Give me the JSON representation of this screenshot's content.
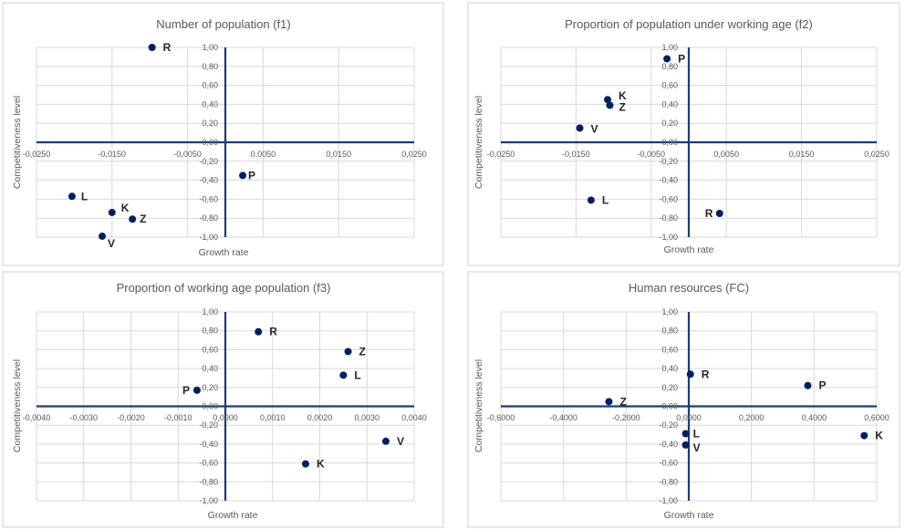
{
  "chart_data": [
    {
      "type": "scatter",
      "title": "Number of population (f1)",
      "xlabel": "Growth rate",
      "ylabel": "Competitiveness level",
      "xlim": [
        -0.025,
        0.025
      ],
      "ylim": [
        -1.0,
        1.0
      ],
      "x_ticks": [
        "-0,0250",
        "-0,0150",
        "-0,0050",
        "0,0050",
        "0,0150",
        "0,0250"
      ],
      "y_ticks": [
        "1,00",
        "0,80",
        "0,60",
        "0,40",
        "0,20",
        "0,00",
        "-0,20",
        "-0,40",
        "-0,60",
        "-0,80",
        "-1,00"
      ],
      "grid": true,
      "points": [
        {
          "label": "R",
          "x": -0.0097,
          "y": 1.0
        },
        {
          "label": "P",
          "x": 0.0023,
          "y": -0.35
        },
        {
          "label": "L",
          "x": -0.0203,
          "y": -0.57
        },
        {
          "label": "K",
          "x": -0.015,
          "y": -0.74
        },
        {
          "label": "Z",
          "x": -0.0123,
          "y": -0.81
        },
        {
          "label": "V",
          "x": -0.0163,
          "y": -0.99
        }
      ]
    },
    {
      "type": "scatter",
      "title": "Proportion of population under working age (f2)",
      "xlabel": "Growth rate",
      "ylabel": "Competitiveness level",
      "xlim": [
        -0.025,
        0.025
      ],
      "ylim": [
        -1.0,
        1.0
      ],
      "x_ticks": [
        "-0,0250",
        "-0,0150",
        "-0,0050",
        "0,0050",
        "0,0150",
        "0,0250"
      ],
      "y_ticks": [
        "1,00",
        "0,80",
        "0,60",
        "0,40",
        "0,20",
        "0,00",
        "-0,20",
        "-0,40",
        "-0,60",
        "-0,80",
        "-1,00"
      ],
      "grid": true,
      "points": [
        {
          "label": "P",
          "x": -0.0029,
          "y": 0.88
        },
        {
          "label": "K",
          "x": -0.0108,
          "y": 0.45
        },
        {
          "label": "Z",
          "x": -0.0105,
          "y": 0.39
        },
        {
          "label": "V",
          "x": -0.0145,
          "y": 0.15
        },
        {
          "label": "L",
          "x": -0.013,
          "y": -0.61
        },
        {
          "label": "R",
          "x": 0.0041,
          "y": -0.75
        }
      ]
    },
    {
      "type": "scatter",
      "title": "Proportion of working age population (f3)",
      "xlabel": "Growth rate",
      "ylabel": "Competitiveness level",
      "xlim": [
        -0.004,
        0.004
      ],
      "ylim": [
        -1.0,
        1.0
      ],
      "x_ticks": [
        "-0,0040",
        "-0,0030",
        "-0,0020",
        "-0,0010",
        "0,0000",
        "0,0010",
        "0,0020",
        "0,0030",
        "0,0040"
      ],
      "y_ticks": [
        "1,00",
        "0,80",
        "0,60",
        "0,40",
        "0,20",
        "0,00",
        "-0,20",
        "-0,40",
        "-0,60",
        "-0,80",
        "-1,00"
      ],
      "grid": true,
      "points": [
        {
          "label": "R",
          "x": 0.0007,
          "y": 0.79
        },
        {
          "label": "Z",
          "x": 0.0026,
          "y": 0.58
        },
        {
          "label": "L",
          "x": 0.0025,
          "y": 0.33
        },
        {
          "label": "P",
          "x": -0.0006,
          "y": 0.17
        },
        {
          "label": "V",
          "x": 0.0034,
          "y": -0.37
        },
        {
          "label": "K",
          "x": 0.0017,
          "y": -0.61
        }
      ]
    },
    {
      "type": "scatter",
      "title": "Human resources (FC)",
      "xlabel": "Growth rate",
      "ylabel": "Competitiveness level",
      "xlim": [
        -0.6,
        0.6
      ],
      "ylim": [
        -1.0,
        1.0
      ],
      "x_ticks": [
        "-0,6000",
        "-0,4000",
        "-0,2000",
        "0,0000",
        "0,2000",
        "0,4000",
        "0,6000"
      ],
      "y_ticks": [
        "1,00",
        "0,80",
        "0,60",
        "0,40",
        "0,20",
        "0,00",
        "-0,20",
        "-0,40",
        "-0,60",
        "-0,80",
        "-1,00"
      ],
      "grid": true,
      "points": [
        {
          "label": "R",
          "x": 0.005,
          "y": 0.34
        },
        {
          "label": "P",
          "x": 0.38,
          "y": 0.22
        },
        {
          "label": "Z",
          "x": -0.255,
          "y": 0.05
        },
        {
          "label": "L",
          "x": -0.01,
          "y": -0.29
        },
        {
          "label": "V",
          "x": -0.01,
          "y": -0.41
        },
        {
          "label": "K",
          "x": 0.56,
          "y": -0.31
        }
      ]
    }
  ],
  "colors": {
    "marker": "#002060",
    "axis": "#1f3a7a",
    "grid": "#d9d9d9",
    "panel_border": "#d0d0d0"
  }
}
